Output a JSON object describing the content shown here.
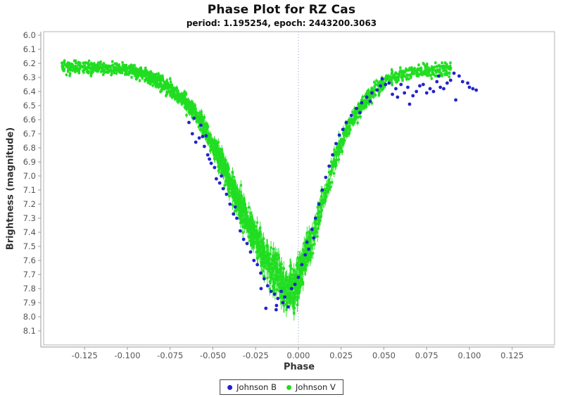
{
  "header": {
    "title": "Phase Plot for RZ Cas",
    "subtitle": "period: 1.195254, epoch: 2443200.3063"
  },
  "chart_data": {
    "type": "scatter",
    "title": "Phase Plot for RZ Cas",
    "subtitle": "period: 1.195254, epoch: 2443200.3063",
    "xlabel": "Phase",
    "ylabel": "Brightness (magnitude)",
    "x_range": [
      -0.15,
      0.15
    ],
    "y_range_mag_top_to_bottom": [
      5.975,
      8.2
    ],
    "y_axis_inverted": true,
    "x_ticks": [
      -0.125,
      -0.1,
      -0.075,
      -0.05,
      -0.025,
      0,
      0.025,
      0.05,
      0.075,
      0.1,
      0.125
    ],
    "x_tick_labels": [
      "-0.125",
      "-0.100",
      "-0.075",
      "-0.050",
      "-0.025",
      "0.000",
      "0.025",
      "0.050",
      "0.075",
      "0.100",
      "0.125"
    ],
    "y_ticks": [
      6.0,
      6.1,
      6.2,
      6.3,
      6.4,
      6.5,
      6.6,
      6.7,
      6.8,
      6.9,
      7.0,
      7.1,
      7.2,
      7.3,
      7.4,
      7.5,
      7.6,
      7.7,
      7.8,
      7.9,
      8.0,
      8.1
    ],
    "y_tick_labels": [
      "6.0",
      "6.1",
      "6.2",
      "6.3",
      "6.4",
      "6.5",
      "6.6",
      "6.7",
      "6.8",
      "6.9",
      "7.0",
      "7.1",
      "7.2",
      "7.3",
      "7.4",
      "7.5",
      "7.6",
      "7.7",
      "7.8",
      "7.9",
      "8.0",
      "8.1"
    ],
    "zero_phase_marker": 0.0,
    "zero_phase_marker_color": "#8899cc",
    "frame_color": "#b3b3b3",
    "axis_line_color": "#9a9a9a",
    "tick_label_color": "#555555",
    "legend": {
      "position": "bottom-center",
      "entries": [
        {
          "label": "Johnson B",
          "color": "#2323cc"
        },
        {
          "label": "Johnson V",
          "color": "#21dd21"
        }
      ]
    },
    "series": [
      {
        "name": "Johnson B",
        "color": "#2323cc",
        "marker": "circle",
        "marker_radius_px": 2.4,
        "points": [
          [
            -0.064,
            6.62
          ],
          [
            -0.062,
            6.7
          ],
          [
            -0.061,
            6.59
          ],
          [
            -0.06,
            6.76
          ],
          [
            -0.058,
            6.73
          ],
          [
            -0.057,
            6.64
          ],
          [
            -0.056,
            6.72
          ],
          [
            -0.055,
            6.79
          ],
          [
            -0.054,
            6.715
          ],
          [
            -0.053,
            6.85
          ],
          [
            -0.052,
            6.88
          ],
          [
            -0.051,
            6.91
          ],
          [
            -0.049,
            6.94
          ],
          [
            -0.048,
            7.02
          ],
          [
            -0.046,
            7.05
          ],
          [
            -0.045,
            7.0
          ],
          [
            -0.044,
            7.09
          ],
          [
            -0.042,
            7.13
          ],
          [
            -0.04,
            7.2
          ],
          [
            -0.038,
            7.27
          ],
          [
            -0.037,
            7.22
          ],
          [
            -0.036,
            7.3
          ],
          [
            -0.034,
            7.39
          ],
          [
            -0.032,
            7.45
          ],
          [
            -0.03,
            7.48
          ],
          [
            -0.028,
            7.54
          ],
          [
            -0.026,
            7.6
          ],
          [
            -0.024,
            7.63
          ],
          [
            -0.022,
            7.69
          ],
          [
            -0.0218,
            7.8
          ],
          [
            -0.02,
            7.73
          ],
          [
            -0.019,
            7.94
          ],
          [
            -0.018,
            7.78
          ],
          [
            -0.016,
            7.82
          ],
          [
            -0.014,
            7.84
          ],
          [
            -0.013,
            7.95
          ],
          [
            -0.012,
            7.87
          ],
          [
            -0.0128,
            7.92
          ],
          [
            -0.01,
            7.82
          ],
          [
            -0.009,
            7.9
          ],
          [
            -0.008,
            7.86
          ],
          [
            -0.006,
            7.93
          ],
          [
            -0.004,
            7.8
          ],
          [
            -0.002,
            7.77
          ],
          [
            0.0,
            7.72
          ],
          [
            0.002,
            7.63
          ],
          [
            0.004,
            7.56
          ],
          [
            0.005,
            7.47
          ],
          [
            0.006,
            7.52
          ],
          [
            0.008,
            7.38
          ],
          [
            0.009,
            7.44
          ],
          [
            0.01,
            7.3
          ],
          [
            0.012,
            7.2
          ],
          [
            0.014,
            7.1
          ],
          [
            0.016,
            7.01
          ],
          [
            0.018,
            6.93
          ],
          [
            0.02,
            6.85
          ],
          [
            0.022,
            6.77
          ],
          [
            0.024,
            6.71
          ],
          [
            0.026,
            6.67
          ],
          [
            0.028,
            6.62
          ],
          [
            0.031,
            6.57
          ],
          [
            0.034,
            6.52
          ],
          [
            0.036,
            6.55
          ],
          [
            0.037,
            6.48
          ],
          [
            0.04,
            6.44
          ],
          [
            0.042,
            6.47
          ],
          [
            0.043,
            6.41
          ],
          [
            0.046,
            6.39
          ],
          [
            0.048,
            6.36
          ],
          [
            0.049,
            6.31
          ],
          [
            0.051,
            6.35
          ],
          [
            0.053,
            6.34
          ],
          [
            0.055,
            6.42
          ],
          [
            0.057,
            6.38
          ],
          [
            0.058,
            6.44
          ],
          [
            0.06,
            6.35
          ],
          [
            0.062,
            6.41
          ],
          [
            0.064,
            6.37
          ],
          [
            0.065,
            6.49
          ],
          [
            0.067,
            6.43
          ],
          [
            0.069,
            6.4
          ],
          [
            0.071,
            6.36
          ],
          [
            0.073,
            6.35
          ],
          [
            0.075,
            6.41
          ],
          [
            0.077,
            6.38
          ],
          [
            0.079,
            6.4
          ],
          [
            0.081,
            6.33
          ],
          [
            0.082,
            6.29
          ],
          [
            0.083,
            6.37
          ],
          [
            0.085,
            6.38
          ],
          [
            0.087,
            6.34
          ],
          [
            0.089,
            6.32
          ],
          [
            0.091,
            6.27
          ],
          [
            0.092,
            6.46
          ],
          [
            0.094,
            6.29
          ],
          [
            0.096,
            6.33
          ],
          [
            0.099,
            6.34
          ],
          [
            0.1,
            6.37
          ],
          [
            0.102,
            6.38
          ],
          [
            0.104,
            6.39
          ]
        ]
      },
      {
        "name": "Johnson V",
        "color": "#21dd21",
        "marker": "square",
        "marker_size_px": 3.4,
        "error_bars": true,
        "synthesis": {
          "note": "dense V-band scatter synthesized around mean light curve read from plot",
          "n_points": 2400,
          "seed": 11,
          "curve": [
            [
              -0.139,
              6.235
            ],
            [
              -0.125,
              6.23
            ],
            [
              -0.115,
              6.235
            ],
            [
              -0.105,
              6.24
            ],
            [
              -0.098,
              6.25
            ],
            [
              -0.092,
              6.27
            ],
            [
              -0.086,
              6.3
            ],
            [
              -0.08,
              6.34
            ],
            [
              -0.074,
              6.39
            ],
            [
              -0.068,
              6.45
            ],
            [
              -0.062,
              6.53
            ],
            [
              -0.056,
              6.63
            ],
            [
              -0.05,
              6.79
            ],
            [
              -0.044,
              6.93
            ],
            [
              -0.038,
              7.1
            ],
            [
              -0.032,
              7.26
            ],
            [
              -0.026,
              7.41
            ],
            [
              -0.02,
              7.56
            ],
            [
              -0.015,
              7.67
            ],
            [
              -0.011,
              7.75
            ],
            [
              -0.008,
              7.8
            ],
            [
              -0.005,
              7.82
            ],
            [
              -0.002,
              7.78
            ],
            [
              0.001,
              7.7
            ],
            [
              0.004,
              7.59
            ],
            [
              0.007,
              7.47
            ],
            [
              0.01,
              7.37
            ],
            [
              0.013,
              7.24
            ],
            [
              0.016,
              7.12
            ],
            [
              0.019,
              6.97
            ],
            [
              0.022,
              6.85
            ],
            [
              0.025,
              6.76
            ],
            [
              0.029,
              6.66
            ],
            [
              0.033,
              6.57
            ],
            [
              0.037,
              6.5
            ],
            [
              0.041,
              6.44
            ],
            [
              0.046,
              6.38
            ],
            [
              0.051,
              6.33
            ],
            [
              0.056,
              6.3
            ],
            [
              0.062,
              6.28
            ],
            [
              0.068,
              6.26
            ],
            [
              0.075,
              6.25
            ],
            [
              0.082,
              6.25
            ],
            [
              0.089,
              6.24
            ]
          ],
          "phase_segments": [
            {
              "from": -0.1385,
              "to": -0.095,
              "weight": 0.14
            },
            {
              "from": -0.095,
              "to": -0.05,
              "weight": 0.21
            },
            {
              "from": -0.05,
              "to": -0.015,
              "weight": 0.26
            },
            {
              "from": -0.015,
              "to": 0.008,
              "weight": 0.15
            },
            {
              "from": 0.008,
              "to": 0.05,
              "weight": 0.14
            },
            {
              "from": 0.05,
              "to": 0.0894,
              "weight": 0.1
            }
          ],
          "scatter_sigma_base": 0.022,
          "scatter_sigma_scale": 0.05,
          "errorbar_half_base": 0.012,
          "errorbar_half_scale": 0.04
        }
      }
    ]
  }
}
